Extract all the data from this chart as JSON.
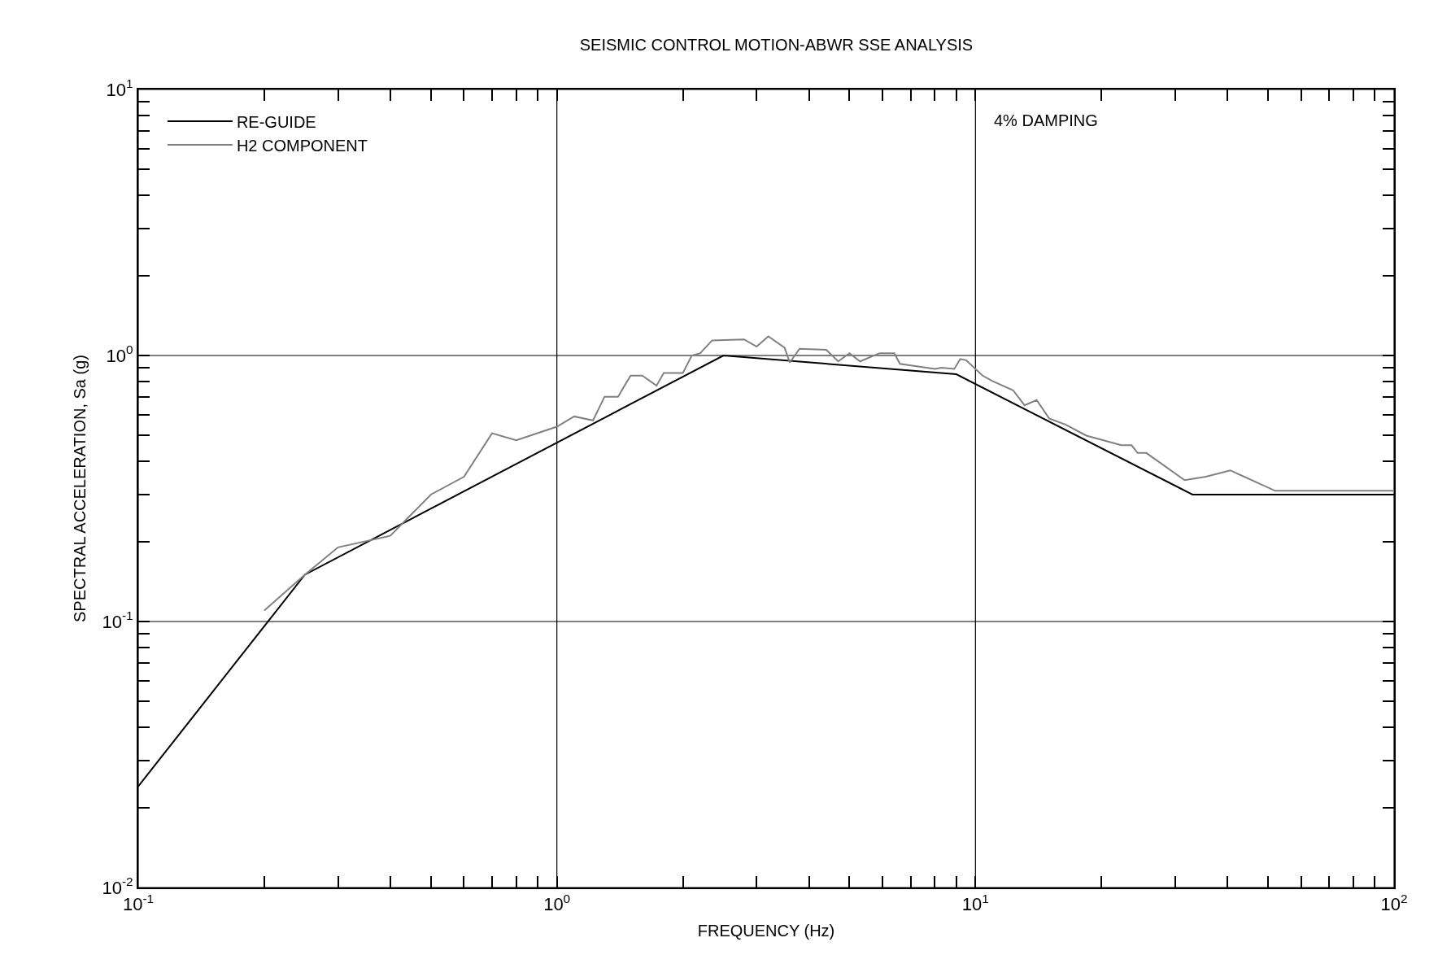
{
  "chart_data": {
    "type": "line",
    "title": "SEISMIC CONTROL MOTION-ABWR SSE ANALYSIS",
    "xlabel": "FREQUENCY (Hz)",
    "ylabel": "SPECTRAL ACCELERATION, Sa (g)",
    "annotations": [
      "4% DAMPING"
    ],
    "log": "xy",
    "grid": true,
    "legend": "top left",
    "marker": "none",
    "line_style": "solid",
    "xlim": [
      0.1,
      100
    ],
    "ylim": [
      0.01,
      10
    ],
    "xticks": [
      {
        "value": 0.1,
        "label": "10$^{-1}$"
      },
      {
        "value": 0.2,
        "label": null
      },
      {
        "value": 0.3,
        "label": null
      },
      {
        "value": 0.4,
        "label": null
      },
      {
        "value": 0.5,
        "label": null
      },
      {
        "value": 0.6,
        "label": null
      },
      {
        "value": 0.7,
        "label": null
      },
      {
        "value": 0.8,
        "label": null
      },
      {
        "value": 0.9,
        "label": null
      },
      {
        "value": 1,
        "label": "10$^{0}$"
      },
      {
        "value": 2,
        "label": null
      },
      {
        "value": 3,
        "label": null
      },
      {
        "value": 4,
        "label": null
      },
      {
        "value": 5,
        "label": null
      },
      {
        "value": 6,
        "label": null
      },
      {
        "value": 7,
        "label": null
      },
      {
        "value": 8,
        "label": null
      },
      {
        "value": 9,
        "label": null
      },
      {
        "value": 10,
        "label": "10$^{1}$"
      },
      {
        "value": 20,
        "label": null
      },
      {
        "value": 30,
        "label": null
      },
      {
        "value": 40,
        "label": null
      },
      {
        "value": 50,
        "label": null
      },
      {
        "value": 60,
        "label": null
      },
      {
        "value": 70,
        "label": null
      },
      {
        "value": 80,
        "label": null
      },
      {
        "value": 90,
        "label": null
      },
      {
        "value": 100,
        "label": "10$^{2}$"
      }
    ],
    "yticks": [
      {
        "value": 0.01,
        "label": "10$^{-2}$"
      },
      {
        "value": 0.02,
        "label": null
      },
      {
        "value": 0.03,
        "label": null
      },
      {
        "value": 0.04,
        "label": null
      },
      {
        "value": 0.05,
        "label": null
      },
      {
        "value": 0.06,
        "label": null
      },
      {
        "value": 0.07,
        "label": null
      },
      {
        "value": 0.08,
        "label": null
      },
      {
        "value": 0.09,
        "label": null
      },
      {
        "value": 0.1,
        "label": "10$^{-1}$"
      },
      {
        "value": 0.2,
        "label": null
      },
      {
        "value": 0.3,
        "label": null
      },
      {
        "value": 0.4,
        "label": null
      },
      {
        "value": 0.5,
        "label": null
      },
      {
        "value": 0.6,
        "label": null
      },
      {
        "value": 0.7,
        "label": null
      },
      {
        "value": 0.8,
        "label": null
      },
      {
        "value": 0.9,
        "label": null
      },
      {
        "value": 1,
        "label": "10$^{0}$"
      },
      {
        "value": 2,
        "label": null
      },
      {
        "value": 3,
        "label": null
      },
      {
        "value": 4,
        "label": null
      },
      {
        "value": 5,
        "label": null
      },
      {
        "value": 6,
        "label": null
      },
      {
        "value": 7,
        "label": null
      },
      {
        "value": 8,
        "label": null
      },
      {
        "value": 9,
        "label": null
      },
      {
        "value": 10,
        "label": "10$^{1}$"
      }
    ],
    "series": [
      {
        "name": "RE-GUIDE",
        "color": "#000000",
        "x": [
          0.1,
          0.25,
          2.5,
          9,
          33,
          100
        ],
        "values": [
          0.024,
          0.15,
          1.0,
          0.85,
          0.3,
          0.3
        ]
      },
      {
        "name": "H2 COMPONENT",
        "color": "#808080",
        "x": [
          0.2,
          0.25,
          0.3,
          0.4,
          0.5,
          0.6,
          0.7,
          0.8,
          1.0,
          1.1,
          1.22,
          1.3,
          1.4,
          1.5,
          1.6,
          1.73,
          1.8,
          2.0,
          2.1,
          2.2,
          2.35,
          2.8,
          3.0,
          3.2,
          3.5,
          3.6,
          3.8,
          4.4,
          4.7,
          5.0,
          5.3,
          5.9,
          6.4,
          6.6,
          8.0,
          8.3,
          8.9,
          9.2,
          9.5,
          10.4,
          11,
          12.3,
          13.1,
          14.0,
          15.0,
          16.4,
          18.4,
          22.3,
          23.6,
          24.4,
          25.6,
          31.6,
          35.5,
          40.6,
          52,
          100
        ],
        "values": [
          0.11,
          0.15,
          0.19,
          0.21,
          0.3,
          0.35,
          0.51,
          0.48,
          0.54,
          0.59,
          0.57,
          0.7,
          0.7,
          0.84,
          0.84,
          0.77,
          0.86,
          0.86,
          1.0,
          1.02,
          1.14,
          1.15,
          1.08,
          1.18,
          1.07,
          0.94,
          1.06,
          1.05,
          0.95,
          1.02,
          0.95,
          1.02,
          1.02,
          0.93,
          0.89,
          0.9,
          0.89,
          0.97,
          0.96,
          0.84,
          0.8,
          0.74,
          0.65,
          0.68,
          0.58,
          0.55,
          0.5,
          0.46,
          0.46,
          0.43,
          0.43,
          0.34,
          0.35,
          0.37,
          0.31,
          0.31
        ]
      }
    ]
  }
}
